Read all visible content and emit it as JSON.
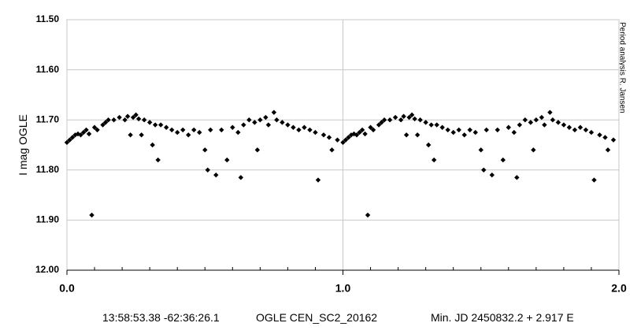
{
  "chart_data": {
    "type": "scatter",
    "y_label": "I mag OGLE",
    "side_note": "Period analysis R. Jansen",
    "caption": [
      "13:58:53.38 -62:36:26.1",
      "OGLE CEN_SC2_20162",
      "Min. JD 2450832.2 + 2.917 E"
    ],
    "xlim": [
      0,
      2
    ],
    "ylim": [
      11.5,
      12.0
    ],
    "y_inverted": true,
    "xticks": [
      {
        "value": 0,
        "label": "0.0"
      },
      {
        "value": 1,
        "label": "1.0"
      },
      {
        "value": 2,
        "label": "2.0"
      }
    ],
    "xminorticks": [
      0.1,
      0.2,
      0.3,
      0.4,
      0.5,
      0.6,
      0.7,
      0.8,
      0.9,
      1.1,
      1.2,
      1.3,
      1.4,
      1.5,
      1.6,
      1.7,
      1.8,
      1.9
    ],
    "yticks": [
      {
        "value": 11.5,
        "label": "11.50"
      },
      {
        "value": 11.6,
        "label": "11.60"
      },
      {
        "value": 11.7,
        "label": "11.70"
      },
      {
        "value": 11.8,
        "label": "11.80"
      },
      {
        "value": 11.9,
        "label": "11.90"
      },
      {
        "value": 12.0,
        "label": "12.00"
      }
    ],
    "grid": true,
    "color": "#000000",
    "x": [
      0.0,
      0.01,
      0.02,
      0.03,
      0.04,
      0.05,
      0.06,
      0.07,
      0.08,
      0.09,
      0.1,
      0.11,
      0.13,
      0.14,
      0.15,
      0.17,
      0.19,
      0.21,
      0.22,
      0.23,
      0.24,
      0.25,
      0.26,
      0.27,
      0.28,
      0.3,
      0.31,
      0.32,
      0.33,
      0.34,
      0.36,
      0.38,
      0.4,
      0.42,
      0.44,
      0.46,
      0.48,
      0.5,
      0.51,
      0.52,
      0.54,
      0.56,
      0.58,
      0.6,
      0.62,
      0.63,
      0.64,
      0.66,
      0.68,
      0.69,
      0.7,
      0.72,
      0.73,
      0.75,
      0.76,
      0.78,
      0.8,
      0.82,
      0.84,
      0.86,
      0.88,
      0.9,
      0.91,
      0.93,
      0.95,
      0.96,
      0.98,
      1.0,
      1.01,
      1.02,
      1.03,
      1.04,
      1.05,
      1.06,
      1.07,
      1.08,
      1.09,
      1.1,
      1.11,
      1.13,
      1.14,
      1.15,
      1.17,
      1.19,
      1.21,
      1.22,
      1.23,
      1.24,
      1.25,
      1.26,
      1.27,
      1.28,
      1.3,
      1.31,
      1.32,
      1.33,
      1.34,
      1.36,
      1.38,
      1.4,
      1.42,
      1.44,
      1.46,
      1.48,
      1.5,
      1.51,
      1.52,
      1.54,
      1.56,
      1.58,
      1.6,
      1.62,
      1.63,
      1.64,
      1.66,
      1.68,
      1.69,
      1.7,
      1.72,
      1.73,
      1.75,
      1.76,
      1.78,
      1.8,
      1.82,
      1.84,
      1.86,
      1.88,
      1.9,
      1.91,
      1.93,
      1.95,
      1.96,
      1.98
    ],
    "values": [
      11.745,
      11.74,
      11.735,
      11.73,
      11.728,
      11.73,
      11.725,
      11.72,
      11.728,
      11.89,
      11.715,
      11.72,
      11.71,
      11.705,
      11.7,
      11.7,
      11.695,
      11.7,
      11.693,
      11.73,
      11.695,
      11.69,
      11.698,
      11.73,
      11.7,
      11.705,
      11.75,
      11.71,
      11.78,
      11.71,
      11.715,
      11.72,
      11.725,
      11.72,
      11.73,
      11.72,
      11.725,
      11.76,
      11.8,
      11.72,
      11.81,
      11.72,
      11.78,
      11.715,
      11.725,
      11.815,
      11.71,
      11.7,
      11.705,
      11.76,
      11.7,
      11.695,
      11.71,
      11.685,
      11.7,
      11.705,
      11.71,
      11.715,
      11.72,
      11.715,
      11.72,
      11.725,
      11.82,
      11.73,
      11.735,
      11.76,
      11.74,
      11.745,
      11.74,
      11.735,
      11.73,
      11.728,
      11.73,
      11.725,
      11.72,
      11.728,
      11.89,
      11.715,
      11.72,
      11.71,
      11.705,
      11.7,
      11.7,
      11.695,
      11.7,
      11.693,
      11.73,
      11.695,
      11.69,
      11.698,
      11.73,
      11.7,
      11.705,
      11.75,
      11.71,
      11.78,
      11.71,
      11.715,
      11.72,
      11.725,
      11.72,
      11.73,
      11.72,
      11.725,
      11.76,
      11.8,
      11.72,
      11.81,
      11.72,
      11.78,
      11.715,
      11.725,
      11.815,
      11.71,
      11.7,
      11.705,
      11.76,
      11.7,
      11.695,
      11.71,
      11.685,
      11.7,
      11.705,
      11.71,
      11.715,
      11.72,
      11.715,
      11.72,
      11.725,
      11.82,
      11.73,
      11.735,
      11.76,
      11.74
    ]
  }
}
